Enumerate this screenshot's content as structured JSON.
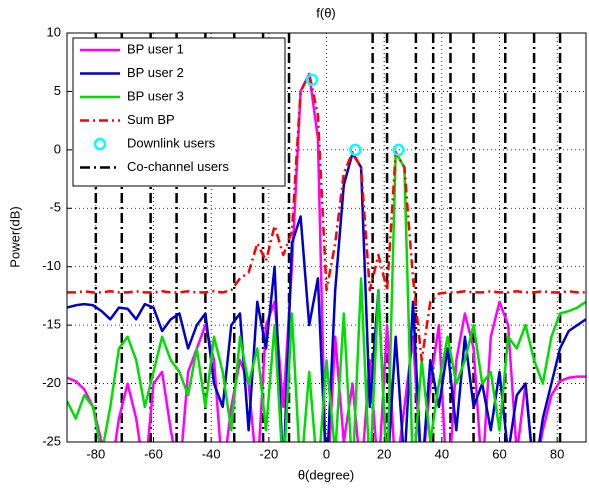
{
  "chart_data": {
    "type": "line",
    "title": "f(θ)",
    "x_label": "θ(degree)",
    "y_label": "Power(dB)",
    "xlim": [
      -90,
      90
    ],
    "ylim": [
      -25,
      10
    ],
    "xticks": [
      -80,
      -60,
      -40,
      -20,
      0,
      20,
      40,
      60,
      80
    ],
    "yticks": [
      -25,
      -20,
      -15,
      -10,
      -5,
      0,
      5,
      10
    ],
    "grid": true,
    "legend": "upper left",
    "x": [
      -90,
      -87,
      -84,
      -81,
      -78,
      -75,
      -72,
      -69,
      -66,
      -63,
      -60,
      -57,
      -54,
      -51,
      -48,
      -45,
      -42,
      -39,
      -36,
      -33,
      -30,
      -27,
      -24,
      -21,
      -18,
      -15,
      -12,
      -9,
      -6,
      -3,
      0,
      3,
      6,
      9,
      12,
      15,
      18,
      21,
      24,
      27,
      30,
      33,
      36,
      39,
      42,
      45,
      48,
      51,
      54,
      57,
      60,
      63,
      66,
      69,
      72,
      75,
      78,
      81,
      84,
      87,
      90
    ],
    "series": [
      {
        "name": "BP user 1",
        "color": "#ff00ff",
        "style": "solid",
        "values": [
          -19.5,
          -19.8,
          -20.5,
          -22,
          -25,
          -28,
          -23,
          -20,
          -23,
          -28,
          -20,
          -19,
          -24,
          -28,
          -19,
          -17,
          -15,
          -18,
          -28,
          -22,
          -18,
          -20,
          -28,
          -15,
          -13,
          -22,
          -10,
          5,
          6.5,
          1,
          -30,
          -16,
          -25,
          -20,
          -28,
          -18,
          -28,
          -15,
          -28,
          -22,
          -16,
          -28,
          -20,
          -15,
          -30,
          -18,
          -14,
          -17,
          -28,
          -16,
          -13,
          -15,
          -26,
          -20,
          -28,
          -24,
          -21,
          -19.8,
          -19.5,
          -19.4,
          -19.4
        ]
      },
      {
        "name": "BP user 2",
        "color": "#0000cc",
        "style": "solid",
        "values": [
          -13.5,
          -13.3,
          -13.2,
          -13.3,
          -13.8,
          -14.5,
          -13.5,
          -13.6,
          -14.5,
          -13.2,
          -13.5,
          -15.5,
          -14.5,
          -14,
          -17,
          -15,
          -14,
          -20,
          -22,
          -15,
          -14,
          -24,
          -13,
          -17,
          -10,
          -28,
          -8,
          -5.7,
          -15,
          -11,
          -28,
          -12,
          -3,
          -0.3,
          -1.5,
          -22,
          -12,
          -28,
          -16,
          -27,
          -13,
          -28,
          -18,
          -22,
          -17,
          -24,
          -16,
          -22,
          -20,
          -24,
          -19,
          -26,
          -21,
          -20,
          -28,
          -23,
          -20,
          -17,
          -15.5,
          -15,
          -14.5
        ]
      },
      {
        "name": "BP user 3",
        "color": "#00dd00",
        "style": "solid",
        "values": [
          -21.5,
          -23,
          -21,
          -22,
          -26,
          -22,
          -17,
          -16,
          -18,
          -22,
          -19,
          -16,
          -18,
          -19,
          -21,
          -17,
          -22,
          -16,
          -19,
          -24,
          -16,
          -20,
          -17,
          -24,
          -15,
          -28,
          -14,
          -28,
          -19,
          -28,
          -18,
          -26,
          -14,
          -28,
          -11,
          -28,
          -12,
          -28,
          -0.2,
          -1.5,
          -28,
          -18,
          -25,
          -20,
          -16,
          -20,
          -18,
          -15,
          -20,
          -19,
          -24,
          -16,
          -17,
          -15,
          -18,
          -20,
          -16,
          -14,
          -13.8,
          -13.5,
          -13
        ]
      },
      {
        "name": "Sum BP",
        "color": "#ff0000",
        "style": "dashdot",
        "values": [
          -12.2,
          -12.2,
          -12.1,
          -12.2,
          -12.2,
          -12.1,
          -12.2,
          -12.2,
          -12.1,
          -12.2,
          -12.2,
          -12.1,
          -12.2,
          -12.2,
          -12.1,
          -12.2,
          -12.2,
          -12.1,
          -12.2,
          -12,
          -11,
          -10.5,
          -8,
          -9.5,
          -6.5,
          -9,
          -7,
          5,
          6.5,
          3,
          -12,
          -8,
          -2,
          -0.2,
          -1.5,
          -12,
          -9,
          -12,
          -0.2,
          -1.5,
          -11,
          -18,
          -13,
          -12.3,
          -12.2,
          -12.2,
          -12.1,
          -12.2,
          -12.2,
          -12.1,
          -12.2,
          -12.2,
          -12.1,
          -12.2,
          -12.2,
          -12.1,
          -12.2,
          -12.2,
          -12.1,
          -12.2,
          -12.2
        ]
      }
    ],
    "downlink": {
      "name": "Downlink users",
      "color": "#00ffff",
      "x": [
        -5,
        10,
        25
      ],
      "values": [
        6,
        0,
        0
      ]
    },
    "cochannel": {
      "name": "Co-channel users",
      "color": "#000000",
      "x": [
        -80,
        -71,
        -61,
        -52,
        -42,
        -32,
        -22,
        -13,
        16,
        21,
        31,
        37,
        43,
        51,
        62,
        72,
        81
      ]
    }
  }
}
